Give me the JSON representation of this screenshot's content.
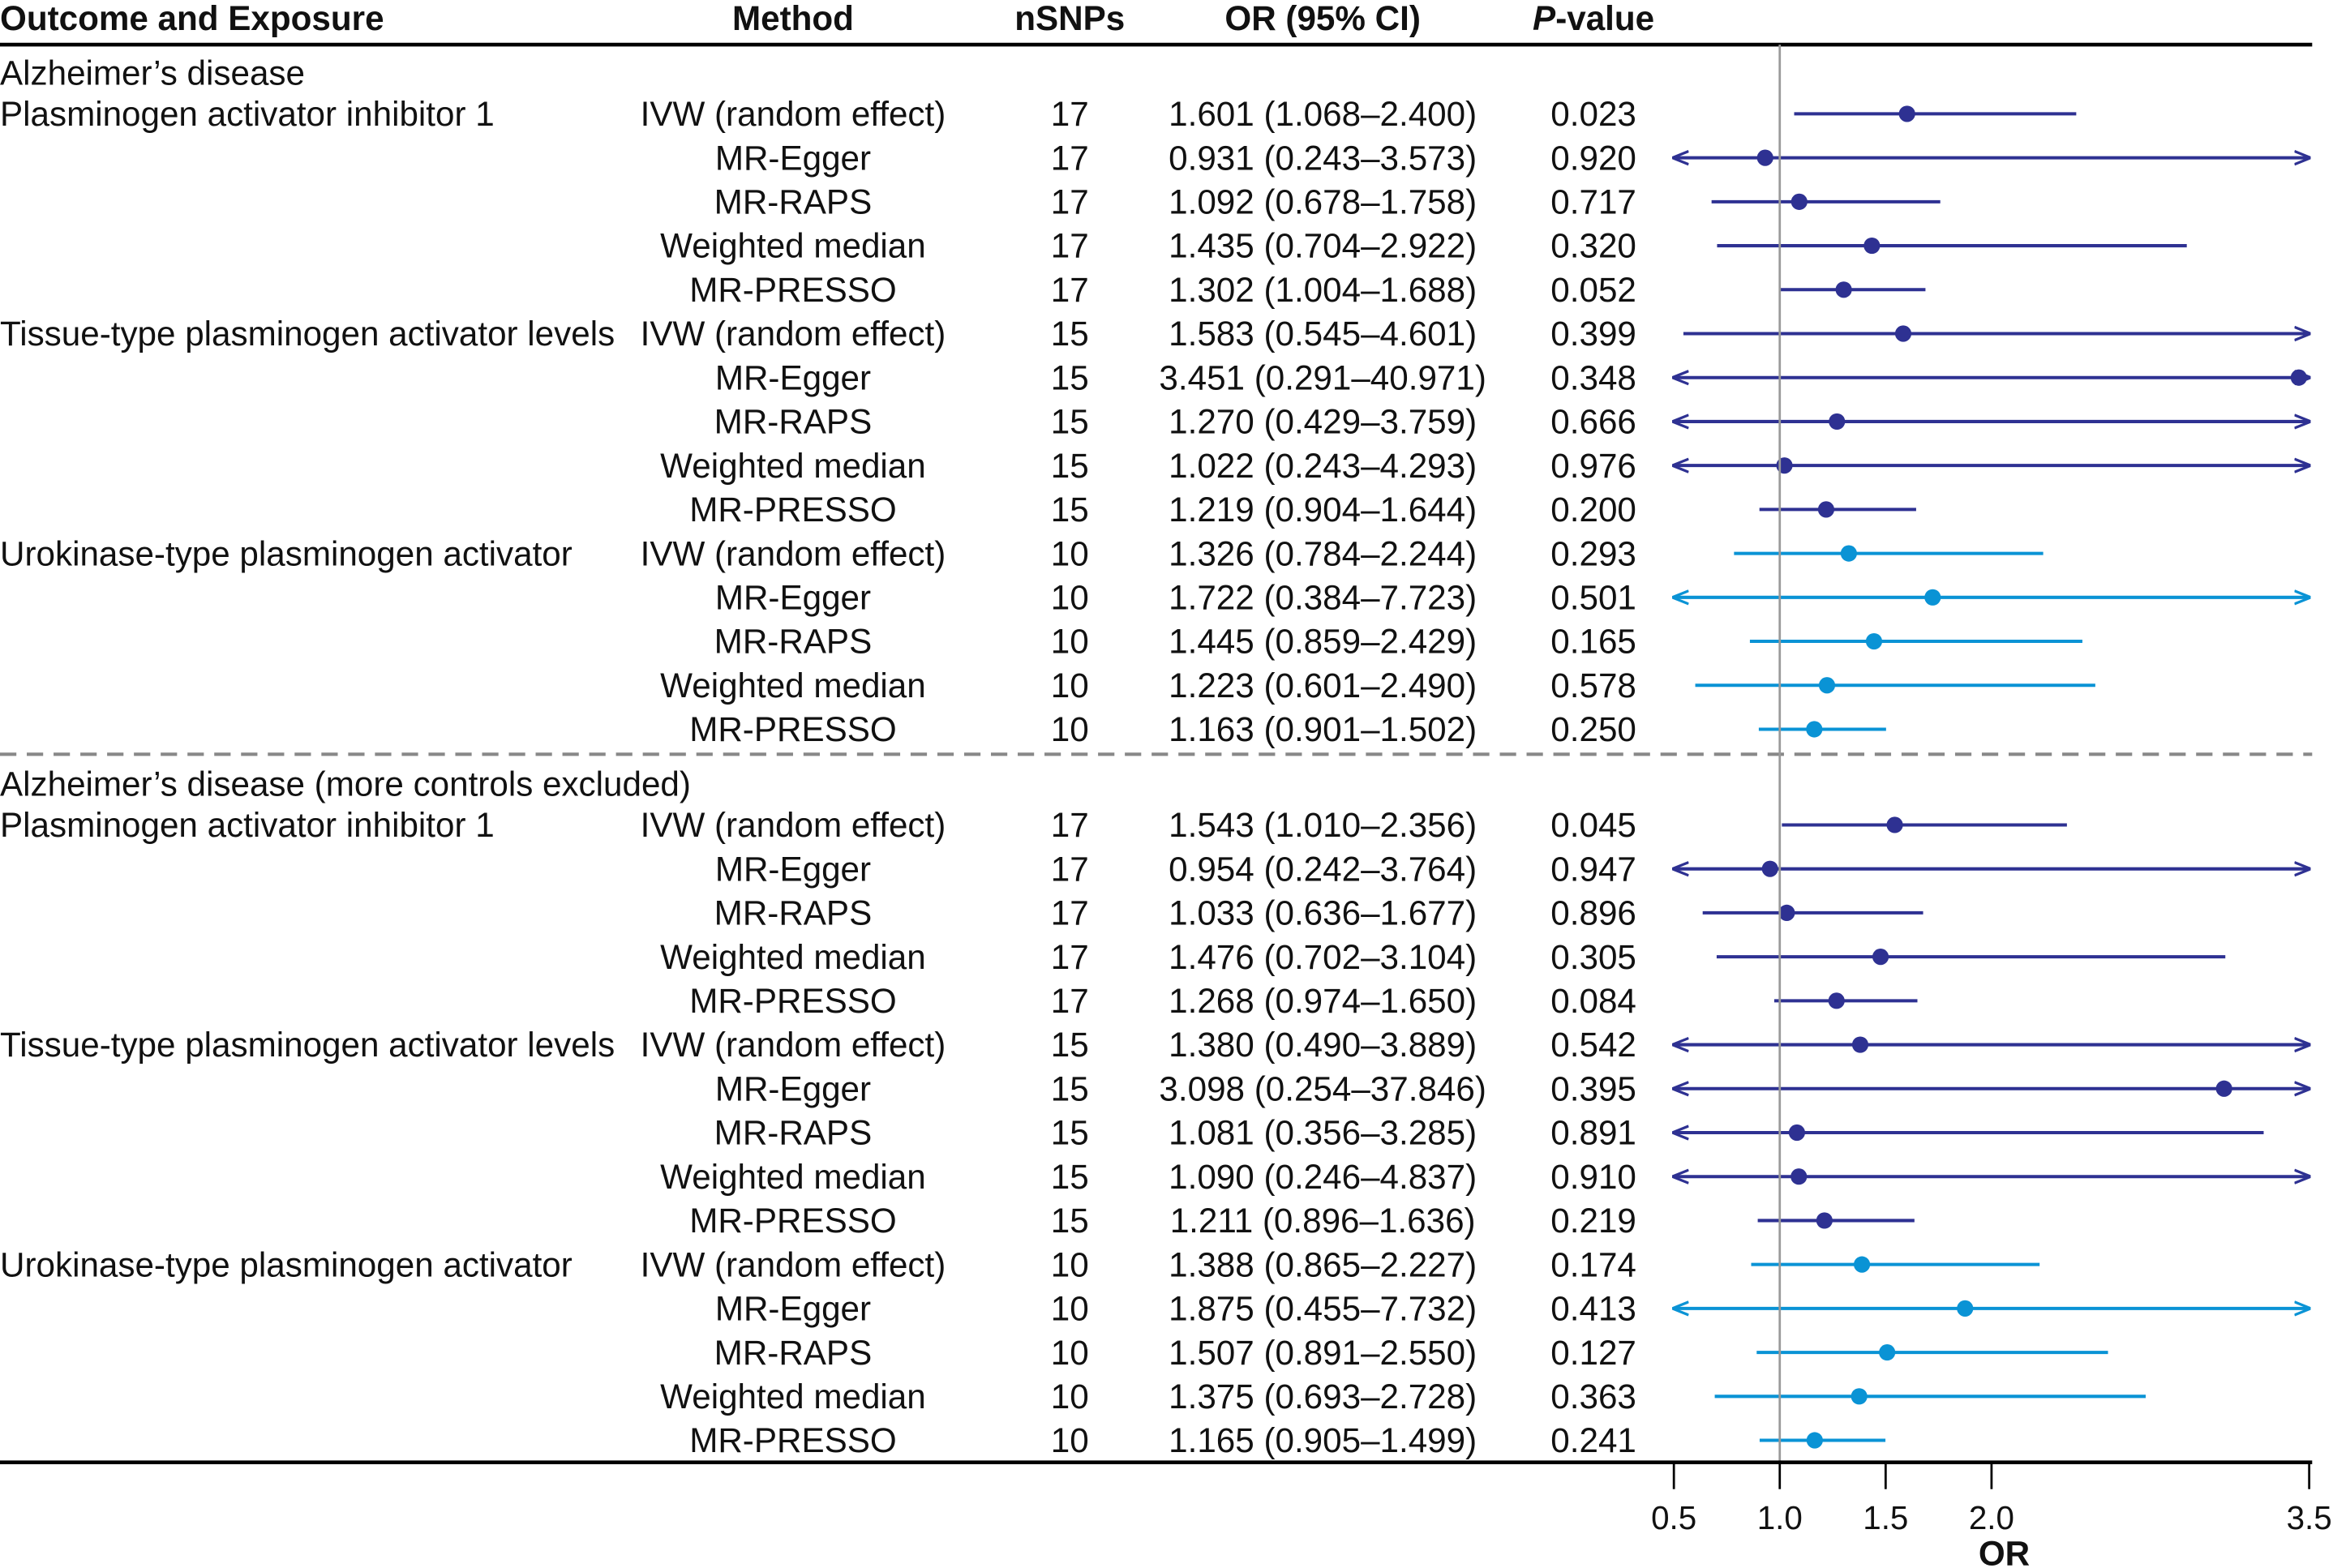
{
  "header": {
    "outcome_exposure": "Outcome and Exposure",
    "method": "Method",
    "nsnps": "nSNPs",
    "or_ci": "OR (95% CI)",
    "pvalue_p": "P",
    "pvalue_rest": "-value"
  },
  "colors": {
    "pai1": "#2e3192",
    "tpa": "#2e3192",
    "upa": "#0a93d5",
    "ref_line": "#999999",
    "divider": "#888888"
  },
  "chart_data": {
    "type": "forest",
    "xlabel": "OR",
    "xlim": [
      0.5,
      3.5
    ],
    "xticks": [
      "0.5",
      "1.0",
      "1.5",
      "2.0",
      "3.5"
    ],
    "xtick_values": [
      0.5,
      1.0,
      1.5,
      2.0,
      3.5
    ],
    "reference_line": 1.0,
    "groups": [
      {
        "title": "Alzheimer’s disease",
        "exposures": [
          {
            "name": "Plasminogen activator inhibitor 1",
            "color_key": "pai1",
            "rows": [
              {
                "method": "IVW (random effect)",
                "nsnps": "17",
                "or": 1.601,
                "lo": 1.068,
                "hi": 2.4,
                "or_text": "1.601 (1.068–2.400)",
                "p": "0.023"
              },
              {
                "method": "MR-Egger",
                "nsnps": "17",
                "or": 0.931,
                "lo": 0.243,
                "hi": 3.573,
                "or_text": "0.931 (0.243–3.573)",
                "p": "0.920"
              },
              {
                "method": "MR-RAPS",
                "nsnps": "17",
                "or": 1.092,
                "lo": 0.678,
                "hi": 1.758,
                "or_text": "1.092 (0.678–1.758)",
                "p": "0.717"
              },
              {
                "method": "Weighted median",
                "nsnps": "17",
                "or": 1.435,
                "lo": 0.704,
                "hi": 2.922,
                "or_text": "1.435 (0.704–2.922)",
                "p": "0.320"
              },
              {
                "method": "MR-PRESSO",
                "nsnps": "17",
                "or": 1.302,
                "lo": 1.004,
                "hi": 1.688,
                "or_text": "1.302 (1.004–1.688)",
                "p": "0.052"
              }
            ]
          },
          {
            "name": "Tissue-type plasminogen activator levels",
            "color_key": "tpa",
            "rows": [
              {
                "method": "IVW (random effect)",
                "nsnps": "15",
                "or": 1.583,
                "lo": 0.545,
                "hi": 4.601,
                "or_text": "1.583 (0.545–4.601)",
                "p": "0.399"
              },
              {
                "method": "MR-Egger",
                "nsnps": "15",
                "or": 3.451,
                "lo": 0.291,
                "hi": 40.971,
                "or_text": "3.451 (0.291–40.971)",
                "p": "0.348"
              },
              {
                "method": "MR-RAPS",
                "nsnps": "15",
                "or": 1.27,
                "lo": 0.429,
                "hi": 3.759,
                "or_text": "1.270 (0.429–3.759)",
                "p": "0.666"
              },
              {
                "method": "Weighted median",
                "nsnps": "15",
                "or": 1.022,
                "lo": 0.243,
                "hi": 4.293,
                "or_text": "1.022 (0.243–4.293)",
                "p": "0.976"
              },
              {
                "method": "MR-PRESSO",
                "nsnps": "15",
                "or": 1.219,
                "lo": 0.904,
                "hi": 1.644,
                "or_text": "1.219 (0.904–1.644)",
                "p": "0.200"
              }
            ]
          },
          {
            "name": "Urokinase-type plasminogen activator",
            "color_key": "upa",
            "rows": [
              {
                "method": "IVW (random effect)",
                "nsnps": "10",
                "or": 1.326,
                "lo": 0.784,
                "hi": 2.244,
                "or_text": "1.326 (0.784–2.244)",
                "p": "0.293"
              },
              {
                "method": "MR-Egger",
                "nsnps": "10",
                "or": 1.722,
                "lo": 0.384,
                "hi": 7.723,
                "or_text": "1.722 (0.384–7.723)",
                "p": "0.501"
              },
              {
                "method": "MR-RAPS",
                "nsnps": "10",
                "or": 1.445,
                "lo": 0.859,
                "hi": 2.429,
                "or_text": "1.445 (0.859–2.429)",
                "p": "0.165"
              },
              {
                "method": "Weighted median",
                "nsnps": "10",
                "or": 1.223,
                "lo": 0.601,
                "hi": 2.49,
                "or_text": "1.223 (0.601–2.490)",
                "p": "0.578"
              },
              {
                "method": "MR-PRESSO",
                "nsnps": "10",
                "or": 1.163,
                "lo": 0.901,
                "hi": 1.502,
                "or_text": "1.163 (0.901–1.502)",
                "p": "0.250"
              }
            ]
          }
        ]
      },
      {
        "title": "Alzheimer’s disease (more controls excluded)",
        "exposures": [
          {
            "name": "Plasminogen activator inhibitor 1",
            "color_key": "pai1",
            "rows": [
              {
                "method": "IVW (random effect)",
                "nsnps": "17",
                "or": 1.543,
                "lo": 1.01,
                "hi": 2.356,
                "or_text": "1.543 (1.010–2.356)",
                "p": "0.045"
              },
              {
                "method": "MR-Egger",
                "nsnps": "17",
                "or": 0.954,
                "lo": 0.242,
                "hi": 3.764,
                "or_text": "0.954 (0.242–3.764)",
                "p": "0.947"
              },
              {
                "method": "MR-RAPS",
                "nsnps": "17",
                "or": 1.033,
                "lo": 0.636,
                "hi": 1.677,
                "or_text": "1.033 (0.636–1.677)",
                "p": "0.896"
              },
              {
                "method": "Weighted median",
                "nsnps": "17",
                "or": 1.476,
                "lo": 0.702,
                "hi": 3.104,
                "or_text": "1.476 (0.702–3.104)",
                "p": "0.305"
              },
              {
                "method": "MR-PRESSO",
                "nsnps": "17",
                "or": 1.268,
                "lo": 0.974,
                "hi": 1.65,
                "or_text": "1.268 (0.974–1.650)",
                "p": "0.084"
              }
            ]
          },
          {
            "name": "Tissue-type plasminogen activator levels",
            "color_key": "tpa",
            "rows": [
              {
                "method": "IVW (random effect)",
                "nsnps": "15",
                "or": 1.38,
                "lo": 0.49,
                "hi": 3.889,
                "or_text": "1.380 (0.490–3.889)",
                "p": "0.542"
              },
              {
                "method": "MR-Egger",
                "nsnps": "15",
                "or": 3.098,
                "lo": 0.254,
                "hi": 37.846,
                "or_text": "3.098 (0.254–37.846)",
                "p": "0.395"
              },
              {
                "method": "MR-RAPS",
                "nsnps": "15",
                "or": 1.081,
                "lo": 0.356,
                "hi": 3.285,
                "or_text": "1.081 (0.356–3.285)",
                "p": "0.891"
              },
              {
                "method": "Weighted median",
                "nsnps": "15",
                "or": 1.09,
                "lo": 0.246,
                "hi": 4.837,
                "or_text": "1.090 (0.246–4.837)",
                "p": "0.910"
              },
              {
                "method": "MR-PRESSO",
                "nsnps": "15",
                "or": 1.211,
                "lo": 0.896,
                "hi": 1.636,
                "or_text": "1.211 (0.896–1.636)",
                "p": "0.219"
              }
            ]
          },
          {
            "name": "Urokinase-type plasminogen activator",
            "color_key": "upa",
            "rows": [
              {
                "method": "IVW (random effect)",
                "nsnps": "10",
                "or": 1.388,
                "lo": 0.865,
                "hi": 2.227,
                "or_text": "1.388 (0.865–2.227)",
                "p": "0.174"
              },
              {
                "method": "MR-Egger",
                "nsnps": "10",
                "or": 1.875,
                "lo": 0.455,
                "hi": 7.732,
                "or_text": "1.875 (0.455–7.732)",
                "p": "0.413"
              },
              {
                "method": "MR-RAPS",
                "nsnps": "10",
                "or": 1.507,
                "lo": 0.891,
                "hi": 2.55,
                "or_text": "1.507 (0.891–2.550)",
                "p": "0.127"
              },
              {
                "method": "Weighted median",
                "nsnps": "10",
                "or": 1.375,
                "lo": 0.693,
                "hi": 2.728,
                "or_text": "1.375 (0.693–2.728)",
                "p": "0.363"
              },
              {
                "method": "MR-PRESSO",
                "nsnps": "10",
                "or": 1.165,
                "lo": 0.905,
                "hi": 1.499,
                "or_text": "1.165 (0.905–1.499)",
                "p": "0.241"
              }
            ]
          }
        ]
      }
    ]
  }
}
